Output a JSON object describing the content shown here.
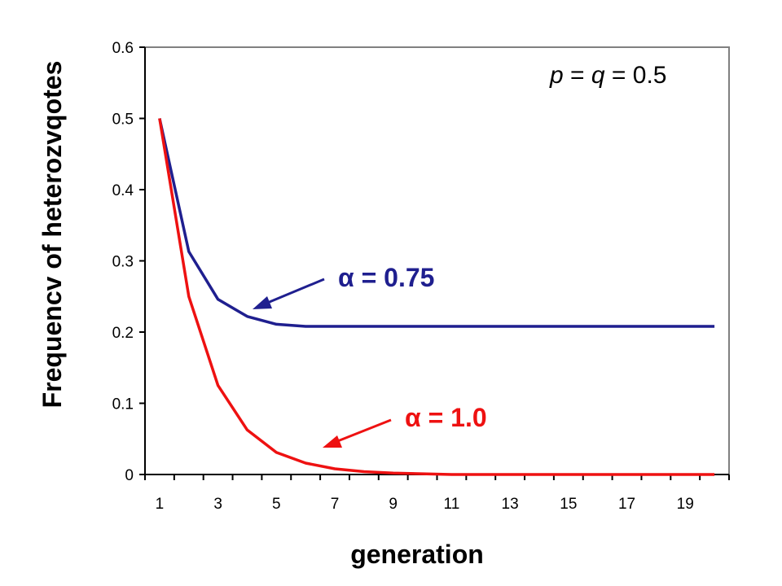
{
  "chart_data": {
    "type": "line",
    "xlabel": "generation",
    "ylabel": "Frequencv of heterozvqotes",
    "xlim": [
      0.5,
      20.5
    ],
    "ylim": [
      0,
      0.6
    ],
    "x_ticks": [
      1,
      3,
      5,
      7,
      9,
      11,
      13,
      15,
      17,
      19
    ],
    "y_ticks": [
      0,
      0.1,
      0.2,
      0.3,
      0.4,
      0.5,
      0.6
    ],
    "y_tick_labels": [
      "0",
      "0.1",
      "0.2",
      "0.3",
      "0.4",
      "0.5",
      "0.6"
    ],
    "x": [
      1,
      2,
      3,
      4,
      5,
      6,
      7,
      8,
      9,
      10,
      11,
      12,
      13,
      14,
      15,
      16,
      17,
      18,
      19,
      20
    ],
    "series": [
      {
        "name": "α = 0.75",
        "color": "#1f1f8f",
        "values": [
          0.5,
          0.313,
          0.246,
          0.222,
          0.211,
          0.208,
          0.208,
          0.208,
          0.208,
          0.208,
          0.208,
          0.208,
          0.208,
          0.208,
          0.208,
          0.208,
          0.208,
          0.208,
          0.208,
          0.208
        ]
      },
      {
        "name": "α = 1.0",
        "color": "#ee1111",
        "values": [
          0.5,
          0.25,
          0.125,
          0.0625,
          0.031,
          0.016,
          0.008,
          0.004,
          0.002,
          0.001,
          0.0,
          0.0,
          0.0,
          0.0,
          0.0,
          0.0,
          0.0,
          0.0,
          0.0,
          0.0
        ]
      }
    ],
    "annotation": {
      "italic_p": "p",
      "eq1": " = ",
      "italic_q": "q",
      "eq2": " = 0.5"
    },
    "grid": false,
    "border_color": "#808080"
  }
}
